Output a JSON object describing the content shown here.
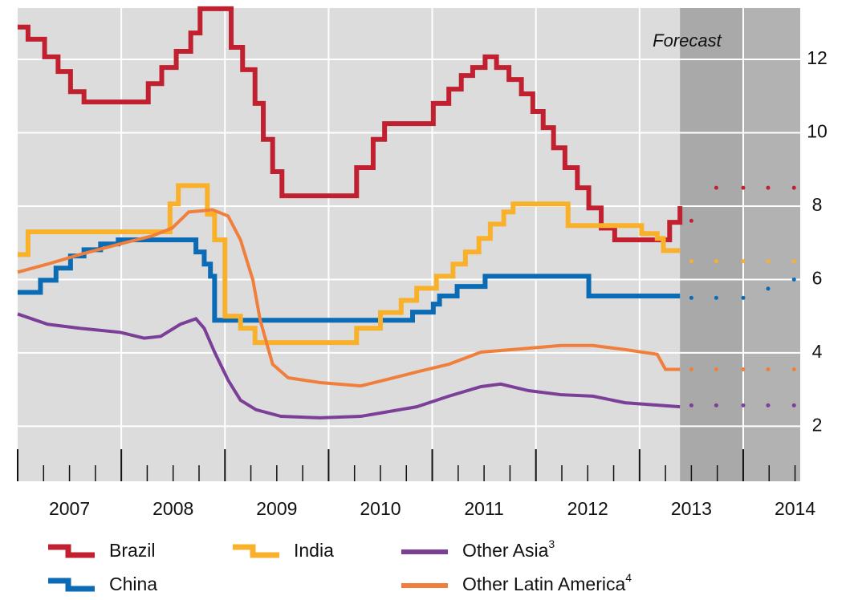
{
  "chart_data": {
    "type": "line",
    "annotation": "Forecast",
    "forecast_start": 2013.39,
    "forecast_split": 2014,
    "xlim": [
      2007,
      2014.55
    ],
    "ylim": [
      0.5,
      13.4
    ],
    "yticks": [
      2,
      4,
      6,
      8,
      10,
      12
    ],
    "xticks": [
      2007,
      2008,
      2009,
      2010,
      2011,
      2012,
      2013,
      2014
    ],
    "grid": true,
    "series": [
      {
        "name": "Brazil",
        "color": "#c0202f",
        "step": true,
        "x": [
          2007.0,
          2007.1,
          2007.26,
          2007.39,
          2007.51,
          2007.64,
          2008.26,
          2008.39,
          2008.53,
          2008.67,
          2008.76,
          2009.06,
          2009.17,
          2009.29,
          2009.37,
          2009.46,
          2009.55,
          2010.27,
          2010.43,
          2010.54,
          2011.01,
          2011.16,
          2011.28,
          2011.39,
          2011.51,
          2011.62,
          2011.74,
          2011.86,
          2011.97,
          2012.07,
          2012.17,
          2012.28,
          2012.4,
          2012.51,
          2012.63,
          2012.76,
          2013.29,
          2013.39
        ],
        "values": [
          12.88,
          12.55,
          12.07,
          11.67,
          11.12,
          10.84,
          11.34,
          11.78,
          12.22,
          12.72,
          13.38,
          12.33,
          11.72,
          10.8,
          9.82,
          8.94,
          8.28,
          9.05,
          9.82,
          10.25,
          10.8,
          11.19,
          11.56,
          11.78,
          12.07,
          11.78,
          11.45,
          11.06,
          10.58,
          10.14,
          9.59,
          9.05,
          8.5,
          7.95,
          7.4,
          7.08,
          7.56,
          8.0
        ],
        "forecast": {
          "x": [
            2013.5,
            2013.74,
            2014.0,
            2014.24,
            2014.49
          ],
          "values": [
            7.6,
            8.5,
            8.5,
            8.5,
            8.5
          ]
        }
      },
      {
        "name": "China",
        "color": "#0b6bb5",
        "step": true,
        "x": [
          2007.0,
          2007.22,
          2007.37,
          2007.51,
          2007.64,
          2007.8,
          2007.97,
          2008.69,
          2008.72,
          2008.8,
          2008.86,
          2008.9,
          2010.77,
          2010.81,
          2011.01,
          2011.07,
          2011.24,
          2011.51,
          2012.44,
          2012.51,
          2013.39
        ],
        "values": [
          5.65,
          5.98,
          6.31,
          6.64,
          6.81,
          6.97,
          7.08,
          7.08,
          6.75,
          6.42,
          6.09,
          4.89,
          4.89,
          5.11,
          5.33,
          5.55,
          5.81,
          6.09,
          6.09,
          5.55,
          5.55
        ],
        "forecast": {
          "x": [
            2013.5,
            2013.74,
            2014.0,
            2014.24,
            2014.49
          ],
          "values": [
            5.5,
            5.5,
            5.5,
            5.75,
            6.0
          ]
        }
      },
      {
        "name": "India",
        "color": "#f9b12b",
        "step": true,
        "x": [
          2007.0,
          2007.1,
          2008.42,
          2008.47,
          2008.55,
          2008.8,
          2008.83,
          2008.9,
          2009.0,
          2009.15,
          2009.29,
          2010.23,
          2010.27,
          2010.5,
          2010.7,
          2010.85,
          2011.04,
          2011.2,
          2011.32,
          2011.45,
          2011.56,
          2011.69,
          2011.78,
          2012.28,
          2012.31,
          2012.94,
          2013.02,
          2013.17,
          2013.23,
          2013.39
        ],
        "values": [
          6.68,
          7.3,
          7.3,
          8.06,
          8.56,
          8.56,
          7.78,
          7.08,
          5.0,
          4.67,
          4.28,
          4.28,
          4.67,
          5.1,
          5.43,
          5.76,
          6.09,
          6.42,
          6.75,
          7.12,
          7.51,
          7.84,
          8.06,
          8.06,
          7.47,
          7.47,
          7.25,
          7.12,
          6.79,
          6.79
        ],
        "forecast": {
          "x": [
            2013.5,
            2013.74,
            2014.0,
            2014.24,
            2014.49
          ],
          "values": [
            6.5,
            6.5,
            6.5,
            6.5,
            6.5
          ]
        }
      },
      {
        "name": "Other Asia",
        "footnote": "3",
        "color": "#7b3f98",
        "step": false,
        "x": [
          2007.0,
          2007.29,
          2007.6,
          2007.99,
          2008.22,
          2008.38,
          2008.57,
          2008.72,
          2008.8,
          2008.9,
          2009.03,
          2009.15,
          2009.3,
          2009.54,
          2009.92,
          2010.31,
          2010.54,
          2010.85,
          2011.16,
          2011.47,
          2011.66,
          2011.93,
          2012.24,
          2012.55,
          2012.86,
          2013.39
        ],
        "values": [
          5.06,
          4.78,
          4.67,
          4.56,
          4.4,
          4.45,
          4.78,
          4.93,
          4.67,
          4.02,
          3.26,
          2.71,
          2.45,
          2.27,
          2.23,
          2.27,
          2.38,
          2.53,
          2.82,
          3.08,
          3.15,
          2.97,
          2.86,
          2.82,
          2.64,
          2.53
        ],
        "forecast": {
          "x": [
            2013.5,
            2013.74,
            2014.0,
            2014.24,
            2014.49
          ],
          "values": [
            2.57,
            2.57,
            2.57,
            2.57,
            2.57
          ]
        }
      },
      {
        "name": "Other Latin America",
        "footnote": "4",
        "color": "#f07f3c",
        "step": false,
        "x": [
          2007.0,
          2007.29,
          2007.6,
          2007.99,
          2008.3,
          2008.49,
          2008.65,
          2008.88,
          2009.03,
          2009.15,
          2009.27,
          2009.34,
          2009.46,
          2009.61,
          2009.92,
          2010.31,
          2010.54,
          2010.85,
          2011.16,
          2011.47,
          2011.86,
          2012.24,
          2012.55,
          2012.86,
          2013.17,
          2013.25,
          2013.39
        ],
        "values": [
          6.2,
          6.42,
          6.68,
          6.97,
          7.19,
          7.4,
          7.84,
          7.9,
          7.73,
          7.08,
          5.98,
          4.89,
          3.69,
          3.32,
          3.19,
          3.1,
          3.26,
          3.48,
          3.69,
          4.02,
          4.11,
          4.2,
          4.2,
          4.09,
          3.96,
          3.55,
          3.55
        ],
        "forecast": {
          "x": [
            2013.5,
            2013.74,
            2014.0,
            2014.24,
            2014.49
          ],
          "values": [
            3.55,
            3.55,
            3.55,
            3.55,
            3.55
          ]
        }
      }
    ]
  }
}
